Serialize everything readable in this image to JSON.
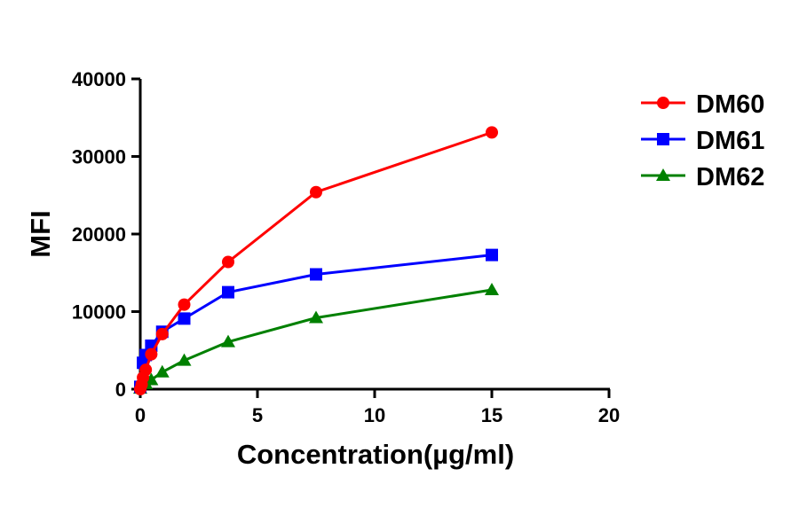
{
  "chart_data": {
    "type": "line",
    "title": "",
    "xlabel": "Concentration(µg/ml)",
    "ylabel": "MFI",
    "xlim": [
      0,
      20
    ],
    "ylim": [
      0,
      40000
    ],
    "xticks": [
      0,
      5,
      10,
      15,
      20
    ],
    "yticks": [
      0,
      10000,
      20000,
      30000,
      40000
    ],
    "grid": false,
    "legend_position": "top-right",
    "series": [
      {
        "name": "DM60",
        "color": "#ff0000",
        "marker": "circle",
        "x": [
          0,
          0.0586,
          0.117,
          0.234,
          0.469,
          0.9375,
          1.875,
          3.75,
          7.5,
          15
        ],
        "y": [
          0,
          600,
          1500,
          2500,
          4500,
          7100,
          10900,
          16400,
          25400,
          33100
        ]
      },
      {
        "name": "DM61",
        "color": "#0000ff",
        "marker": "square",
        "x": [
          0,
          0.117,
          0.234,
          0.469,
          0.9375,
          1.875,
          3.75,
          7.5,
          15
        ],
        "y": [
          300,
          3400,
          4400,
          5600,
          7400,
          9100,
          12500,
          14800,
          17300
        ]
      },
      {
        "name": "DM62",
        "color": "#008000",
        "marker": "triangle",
        "x": [
          0,
          0.234,
          0.469,
          0.9375,
          1.875,
          3.75,
          7.5,
          15
        ],
        "y": [
          100,
          700,
          1200,
          2200,
          3700,
          6100,
          9200,
          12800
        ]
      }
    ]
  }
}
